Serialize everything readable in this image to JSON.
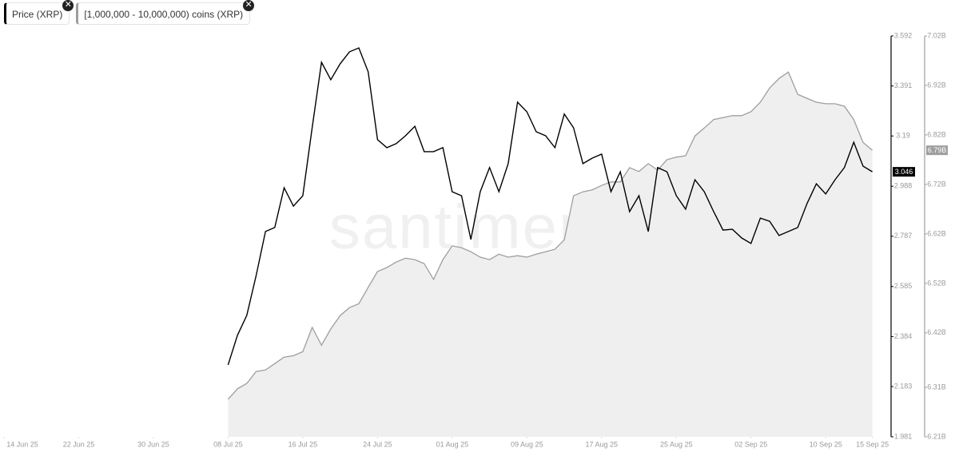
{
  "chart_data": {
    "type": "line",
    "watermark": "santiment",
    "x": [
      "2025-07-08",
      "2025-07-09",
      "2025-07-10",
      "2025-07-11",
      "2025-07-12",
      "2025-07-13",
      "2025-07-14",
      "2025-07-15",
      "2025-07-16",
      "2025-07-17",
      "2025-07-18",
      "2025-07-19",
      "2025-07-20",
      "2025-07-21",
      "2025-07-22",
      "2025-07-23",
      "2025-07-24",
      "2025-07-25",
      "2025-07-26",
      "2025-07-27",
      "2025-07-28",
      "2025-07-29",
      "2025-07-30",
      "2025-07-31",
      "2025-08-01",
      "2025-08-02",
      "2025-08-03",
      "2025-08-04",
      "2025-08-05",
      "2025-08-06",
      "2025-08-07",
      "2025-08-08",
      "2025-08-09",
      "2025-08-10",
      "2025-08-11",
      "2025-08-12",
      "2025-08-13",
      "2025-08-14",
      "2025-08-15",
      "2025-08-16",
      "2025-08-17",
      "2025-08-18",
      "2025-08-19",
      "2025-08-20",
      "2025-08-21",
      "2025-08-22",
      "2025-08-23",
      "2025-08-24",
      "2025-08-25",
      "2025-08-26",
      "2025-08-27",
      "2025-08-28",
      "2025-08-29",
      "2025-08-30",
      "2025-08-31",
      "2025-09-01",
      "2025-09-02",
      "2025-09-03",
      "2025-09-04",
      "2025-09-05",
      "2025-09-06",
      "2025-09-07",
      "2025-09-08",
      "2025-09-09",
      "2025-09-10",
      "2025-09-11",
      "2025-09-12",
      "2025-09-13",
      "2025-09-14",
      "2025-09-15"
    ],
    "series": [
      {
        "name": "Price (XRP)",
        "type": "line",
        "color": "#000000",
        "values": [
          2.27,
          2.389,
          2.469,
          2.629,
          2.806,
          2.822,
          2.982,
          2.908,
          2.95,
          3.223,
          3.486,
          3.416,
          3.48,
          3.528,
          3.544,
          3.448,
          3.175,
          3.143,
          3.159,
          3.191,
          3.229,
          3.127,
          3.127,
          3.143,
          2.966,
          2.95,
          2.774,
          2.966,
          3.063,
          2.966,
          3.079,
          3.326,
          3.287,
          3.207,
          3.191,
          3.143,
          3.278,
          3.223,
          3.079,
          3.101,
          3.117,
          2.966,
          3.046,
          2.886,
          2.95,
          2.806,
          3.063,
          3.046,
          2.95,
          2.896,
          3.014,
          2.966,
          2.886,
          2.812,
          2.815,
          2.78,
          2.758,
          2.86,
          2.847,
          2.79,
          2.806,
          2.822,
          2.918,
          2.998,
          2.957,
          3.014,
          3.063,
          3.165,
          3.069,
          3.046
        ]
      },
      {
        "name": "[1,000,000 - 10,000,000) coins (XRP)",
        "type": "area",
        "axis": "y2",
        "color": "#9e9e9e",
        "fill": "#efefef",
        "values": [
          6.286,
          6.307,
          6.318,
          6.342,
          6.345,
          6.358,
          6.371,
          6.374,
          6.382,
          6.431,
          6.395,
          6.428,
          6.455,
          6.471,
          6.479,
          6.512,
          6.544,
          6.552,
          6.563,
          6.571,
          6.568,
          6.56,
          6.528,
          6.568,
          6.596,
          6.592,
          6.584,
          6.573,
          6.568,
          6.579,
          6.573,
          6.576,
          6.573,
          6.579,
          6.584,
          6.589,
          6.608,
          6.697,
          6.705,
          6.709,
          6.718,
          6.725,
          6.725,
          6.754,
          6.746,
          6.762,
          6.749,
          6.77,
          6.775,
          6.778,
          6.818,
          6.834,
          6.851,
          6.855,
          6.859,
          6.859,
          6.867,
          6.886,
          6.915,
          6.934,
          6.947,
          6.902,
          6.894,
          6.886,
          6.883,
          6.883,
          6.878,
          6.851,
          6.805,
          6.789
        ],
        "value_labels": [
          null,
          null,
          null,
          null,
          null,
          null,
          null,
          null,
          null,
          null,
          null,
          null,
          null,
          null,
          null,
          null,
          null,
          null,
          null,
          null,
          null,
          null,
          null,
          null,
          null,
          null,
          null,
          null,
          null,
          null,
          null,
          null,
          null,
          null,
          null,
          null,
          null,
          null,
          null,
          null,
          null,
          null,
          null,
          null,
          null,
          null,
          null,
          null,
          null,
          null,
          null,
          null,
          null,
          null,
          null,
          null,
          null,
          null,
          null,
          null,
          null,
          null,
          null,
          null,
          null,
          null,
          null,
          null,
          null,
          "6.79B"
        ]
      }
    ],
    "xlim": [
      "2025-06-14",
      "2025-09-17"
    ],
    "xticks": [
      {
        "value": "2025-06-14",
        "label": "14 Jun 25"
      },
      {
        "value": "2025-06-22",
        "label": "22 Jun 25"
      },
      {
        "value": "2025-06-30",
        "label": "30 Jun 25"
      },
      {
        "value": "2025-07-08",
        "label": "08 Jul 25"
      },
      {
        "value": "2025-07-16",
        "label": "16 Jul 25"
      },
      {
        "value": "2025-07-24",
        "label": "24 Jul 25"
      },
      {
        "value": "2025-08-01",
        "label": "01 Aug 25"
      },
      {
        "value": "2025-08-09",
        "label": "09 Aug 25"
      },
      {
        "value": "2025-08-17",
        "label": "17 Aug 25"
      },
      {
        "value": "2025-08-25",
        "label": "25 Aug 25"
      },
      {
        "value": "2025-09-02",
        "label": "02 Sep 25"
      },
      {
        "value": "2025-09-10",
        "label": "10 Sep 25"
      },
      {
        "value": "2025-09-15",
        "label": "15 Sep 25"
      }
    ],
    "ylim": [
      1.981,
      3.592
    ],
    "yticks": [
      1.981,
      2.183,
      2.384,
      2.585,
      2.787,
      2.988,
      3.19,
      3.391,
      3.592
    ],
    "y2lim": [
      6.21,
      7.02
    ],
    "y2ticks": [
      {
        "value": 6.21,
        "label": "6.21B"
      },
      {
        "value": 6.31,
        "label": "6.31B"
      },
      {
        "value": 6.42,
        "label": "6.42B"
      },
      {
        "value": 6.52,
        "label": "6.52B"
      },
      {
        "value": 6.62,
        "label": "6.62B"
      },
      {
        "value": 6.72,
        "label": "6.72B"
      },
      {
        "value": 6.82,
        "label": "6.82B"
      },
      {
        "value": 6.92,
        "label": "6.92B"
      },
      {
        "value": 7.02,
        "label": "7.02B"
      }
    ]
  }
}
